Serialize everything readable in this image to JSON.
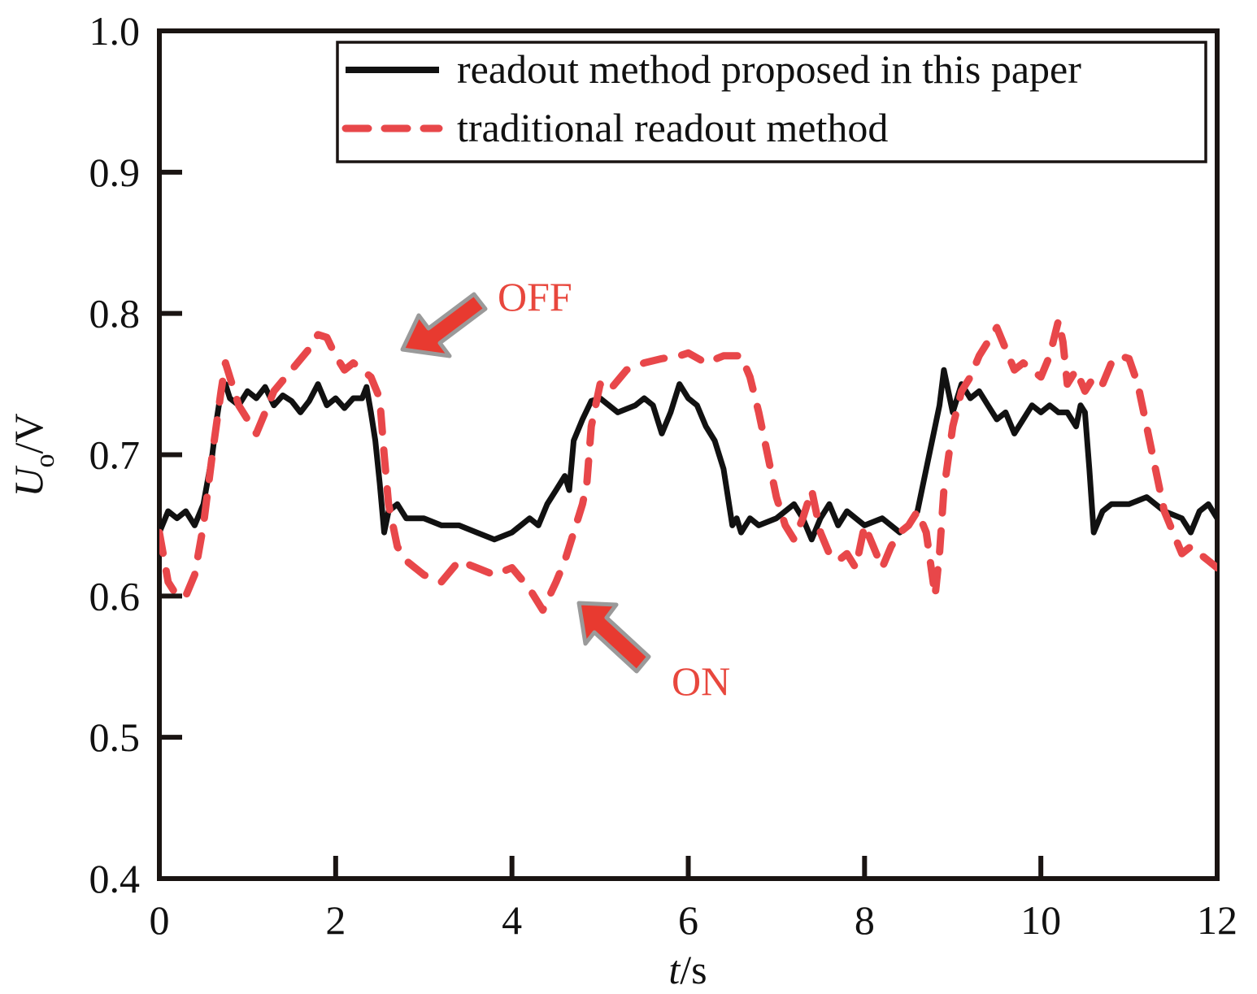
{
  "chart_data": {
    "type": "line",
    "title": "",
    "xlabel_italic": "t",
    "xlabel_unit": "/s",
    "ylabel_main": "U",
    "ylabel_sub": "o",
    "ylabel_unit": "/V",
    "xlim": [
      0,
      12
    ],
    "ylim": [
      0.4,
      1.0
    ],
    "x_ticks": [
      "0",
      "2",
      "4",
      "6",
      "8",
      "10",
      "12"
    ],
    "y_ticks": [
      "0.4",
      "0.5",
      "0.6",
      "0.7",
      "0.8",
      "0.9",
      "1.0"
    ],
    "grid": false,
    "legend_position": "top-right",
    "series": [
      {
        "name": "readout method proposed in this paper",
        "color": "#111111",
        "style": "solid",
        "x": [
          0,
          0.1,
          0.2,
          0.3,
          0.4,
          0.5,
          0.6,
          0.65,
          0.7,
          0.75,
          0.8,
          0.9,
          1.0,
          1.1,
          1.2,
          1.3,
          1.4,
          1.5,
          1.6,
          1.7,
          1.8,
          1.9,
          2.0,
          2.1,
          2.2,
          2.3,
          2.35,
          2.4,
          2.45,
          2.5,
          2.55,
          2.6,
          2.7,
          2.8,
          3.0,
          3.2,
          3.4,
          3.6,
          3.8,
          4.0,
          4.2,
          4.3,
          4.4,
          4.5,
          4.6,
          4.65,
          4.7,
          4.8,
          4.9,
          5.0,
          5.2,
          5.4,
          5.5,
          5.6,
          5.7,
          5.8,
          5.9,
          6.0,
          6.1,
          6.2,
          6.3,
          6.4,
          6.45,
          6.5,
          6.55,
          6.6,
          6.7,
          6.8,
          7.0,
          7.1,
          7.2,
          7.3,
          7.4,
          7.5,
          7.6,
          7.7,
          7.8,
          8.0,
          8.2,
          8.4,
          8.5,
          8.6,
          8.7,
          8.8,
          8.85,
          8.9,
          9.0,
          9.1,
          9.2,
          9.3,
          9.4,
          9.5,
          9.6,
          9.7,
          9.8,
          9.9,
          10.0,
          10.1,
          10.2,
          10.3,
          10.4,
          10.45,
          10.5,
          10.55,
          10.6,
          10.7,
          10.8,
          11.0,
          11.2,
          11.4,
          11.6,
          11.7,
          11.8,
          11.9,
          12.0
        ],
        "y": [
          0.645,
          0.66,
          0.655,
          0.66,
          0.65,
          0.665,
          0.7,
          0.725,
          0.745,
          0.75,
          0.74,
          0.735,
          0.745,
          0.74,
          0.748,
          0.735,
          0.742,
          0.738,
          0.73,
          0.738,
          0.75,
          0.735,
          0.74,
          0.733,
          0.74,
          0.74,
          0.748,
          0.73,
          0.71,
          0.68,
          0.645,
          0.66,
          0.665,
          0.655,
          0.655,
          0.65,
          0.65,
          0.645,
          0.64,
          0.645,
          0.655,
          0.65,
          0.665,
          0.675,
          0.685,
          0.675,
          0.71,
          0.725,
          0.738,
          0.74,
          0.73,
          0.735,
          0.74,
          0.735,
          0.715,
          0.73,
          0.75,
          0.74,
          0.735,
          0.72,
          0.71,
          0.69,
          0.67,
          0.65,
          0.655,
          0.645,
          0.655,
          0.65,
          0.655,
          0.66,
          0.665,
          0.655,
          0.64,
          0.655,
          0.665,
          0.65,
          0.66,
          0.65,
          0.655,
          0.645,
          0.65,
          0.66,
          0.69,
          0.72,
          0.735,
          0.76,
          0.73,
          0.75,
          0.74,
          0.745,
          0.735,
          0.725,
          0.73,
          0.715,
          0.725,
          0.735,
          0.73,
          0.735,
          0.73,
          0.73,
          0.72,
          0.735,
          0.73,
          0.69,
          0.645,
          0.66,
          0.665,
          0.665,
          0.67,
          0.66,
          0.655,
          0.645,
          0.66,
          0.665,
          0.655
        ]
      },
      {
        "name": "traditional readout method",
        "color": "#e8474a",
        "style": "dashed",
        "x": [
          0,
          0.1,
          0.2,
          0.3,
          0.4,
          0.5,
          0.6,
          0.7,
          0.75,
          0.8,
          0.9,
          1.0,
          1.1,
          1.2,
          1.3,
          1.5,
          1.7,
          1.8,
          1.9,
          2.0,
          2.1,
          2.2,
          2.3,
          2.4,
          2.5,
          2.55,
          2.6,
          2.7,
          2.8,
          3.0,
          3.2,
          3.4,
          3.6,
          3.8,
          4.0,
          4.2,
          4.35,
          4.5,
          4.6,
          4.7,
          4.8,
          4.85,
          4.9,
          5.0,
          5.1,
          5.3,
          5.5,
          5.7,
          5.9,
          6.0,
          6.2,
          6.4,
          6.6,
          6.7,
          6.8,
          6.9,
          7.0,
          7.1,
          7.2,
          7.3,
          7.4,
          7.5,
          7.6,
          7.7,
          7.8,
          7.9,
          8.0,
          8.1,
          8.2,
          8.3,
          8.4,
          8.5,
          8.6,
          8.7,
          8.8,
          8.85,
          8.9,
          9.0,
          9.1,
          9.2,
          9.3,
          9.4,
          9.5,
          9.6,
          9.7,
          9.8,
          9.9,
          10.0,
          10.1,
          10.2,
          10.25,
          10.3,
          10.4,
          10.5,
          10.6,
          10.7,
          10.8,
          10.9,
          11.0,
          11.1,
          11.2,
          11.3,
          11.4,
          11.5,
          11.6,
          11.7,
          11.8,
          11.9,
          12.0
        ],
        "y": [
          0.645,
          0.61,
          0.6,
          0.6,
          0.615,
          0.65,
          0.7,
          0.745,
          0.765,
          0.755,
          0.735,
          0.725,
          0.715,
          0.73,
          0.745,
          0.76,
          0.775,
          0.785,
          0.783,
          0.77,
          0.76,
          0.765,
          0.76,
          0.755,
          0.74,
          0.7,
          0.665,
          0.635,
          0.625,
          0.615,
          0.61,
          0.625,
          0.62,
          0.615,
          0.62,
          0.605,
          0.59,
          0.61,
          0.625,
          0.645,
          0.665,
          0.68,
          0.72,
          0.75,
          0.745,
          0.76,
          0.765,
          0.768,
          0.77,
          0.772,
          0.765,
          0.77,
          0.77,
          0.755,
          0.73,
          0.7,
          0.67,
          0.65,
          0.64,
          0.655,
          0.675,
          0.645,
          0.63,
          0.625,
          0.63,
          0.62,
          0.65,
          0.635,
          0.62,
          0.635,
          0.645,
          0.65,
          0.66,
          0.645,
          0.6,
          0.63,
          0.675,
          0.72,
          0.745,
          0.755,
          0.77,
          0.78,
          0.79,
          0.775,
          0.76,
          0.765,
          0.76,
          0.755,
          0.77,
          0.795,
          0.78,
          0.75,
          0.76,
          0.745,
          0.755,
          0.75,
          0.765,
          0.77,
          0.768,
          0.75,
          0.72,
          0.69,
          0.66,
          0.645,
          0.63,
          0.635,
          0.63,
          0.625,
          0.62
        ]
      }
    ],
    "annotations": [
      {
        "text": "OFF",
        "color": "#e8473d"
      },
      {
        "text": "ON",
        "color": "#e8473d"
      }
    ]
  }
}
